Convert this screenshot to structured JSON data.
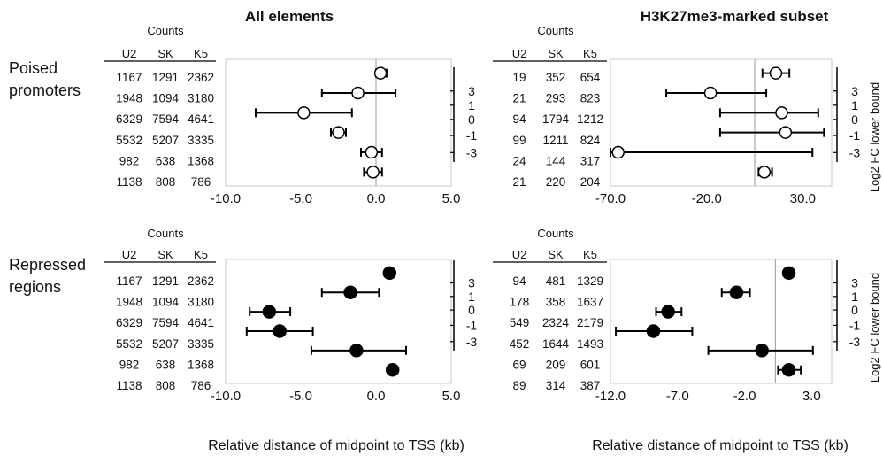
{
  "headers": {
    "left": "All elements",
    "right": "H3K27me3-marked subset"
  },
  "row_labels": {
    "top": [
      "Poised",
      "promoters"
    ],
    "bottom": [
      "Repressed",
      "regions"
    ]
  },
  "counts_label": "Counts",
  "count_columns": [
    "U2",
    "SK",
    "K5"
  ],
  "x_label": "Relative distance of midpoint to TSS (kb)",
  "side_label": "Log2 FC lower bound",
  "side_ticks": [
    "3",
    "1",
    "0",
    "-1",
    "-3"
  ],
  "chart_data": [
    {
      "type": "scatter",
      "id": "poised-all",
      "title": "All elements",
      "row_label": "Poised promoters",
      "marker": "open",
      "xlim": [
        -10,
        5
      ],
      "xticks": [
        "-10.0",
        "-5.0",
        "0.0",
        "5.0"
      ],
      "xtick_values": [
        -10,
        -5,
        0,
        5
      ],
      "refline": 0,
      "counts": [
        [
          "1167",
          "1291",
          "2362"
        ],
        [
          "1948",
          "1094",
          "3180"
        ],
        [
          "6329",
          "7594",
          "4641"
        ],
        [
          "5532",
          "5207",
          "3335"
        ],
        [
          "982",
          "638",
          "1368"
        ],
        [
          "1138",
          "808",
          "786"
        ]
      ],
      "points": [
        {
          "x": 0.3,
          "low": 0.0,
          "high": 0.7
        },
        {
          "x": -1.2,
          "low": -3.6,
          "high": 1.3
        },
        {
          "x": -4.8,
          "low": -8.0,
          "high": -1.6
        },
        {
          "x": -2.5,
          "low": -3.0,
          "high": -2.0
        },
        {
          "x": -0.3,
          "low": -1.0,
          "high": 0.4
        },
        {
          "x": -0.2,
          "low": -0.8,
          "high": 0.4
        }
      ]
    },
    {
      "type": "scatter",
      "id": "poised-h3k27",
      "title": "H3K27me3-marked subset",
      "row_label": "Poised promoters",
      "marker": "open",
      "xlim": [
        -70,
        45
      ],
      "xticks": [
        "-70.0",
        "-20.0",
        "30.0"
      ],
      "xtick_values": [
        -70,
        -20,
        30
      ],
      "refline": 5,
      "counts": [
        [
          "19",
          "352",
          "654"
        ],
        [
          "21",
          "293",
          "823"
        ],
        [
          "94",
          "1794",
          "1212"
        ],
        [
          "99",
          "1211",
          "824"
        ],
        [
          "24",
          "144",
          "317"
        ],
        [
          "21",
          "220",
          "204"
        ]
      ],
      "points": [
        {
          "x": 16,
          "low": 9,
          "high": 23
        },
        {
          "x": -18,
          "low": -41,
          "high": 11
        },
        {
          "x": 19,
          "low": -13,
          "high": 38
        },
        {
          "x": 21,
          "low": -13,
          "high": 41
        },
        {
          "x": -66,
          "low": -70,
          "high": 35
        },
        {
          "x": 10,
          "low": 7,
          "high": 14
        }
      ]
    },
    {
      "type": "scatter",
      "id": "repressed-all",
      "title": "All elements",
      "row_label": "Repressed regions",
      "marker": "filled",
      "xlim": [
        -10,
        5
      ],
      "xticks": [
        "-10.0",
        "-5.0",
        "0.0",
        "5.0"
      ],
      "xtick_values": [
        -10,
        -5,
        0,
        5
      ],
      "refline": null,
      "counts": [
        [
          "1167",
          "1291",
          "2362"
        ],
        [
          "1948",
          "1094",
          "3180"
        ],
        [
          "6329",
          "7594",
          "4641"
        ],
        [
          "5532",
          "5207",
          "3335"
        ],
        [
          "982",
          "638",
          "1368"
        ],
        [
          "1138",
          "808",
          "786"
        ]
      ],
      "points": [
        {
          "x": 0.9,
          "low": null,
          "high": null
        },
        {
          "x": -1.7,
          "low": -3.6,
          "high": 0.2
        },
        {
          "x": -7.1,
          "low": -8.4,
          "high": -5.7
        },
        {
          "x": -6.4,
          "low": -8.6,
          "high": -4.2
        },
        {
          "x": -1.3,
          "low": -4.3,
          "high": 2.0
        },
        {
          "x": 1.1,
          "low": null,
          "high": null
        }
      ]
    },
    {
      "type": "scatter",
      "id": "repressed-h3k27",
      "title": "H3K27me3-marked subset",
      "row_label": "Repressed regions",
      "marker": "filled",
      "xlim": [
        -12,
        4.5
      ],
      "xticks": [
        "-12.0",
        "-7.0",
        "-2.0",
        "3.0"
      ],
      "xtick_values": [
        -12,
        -7,
        -2,
        3
      ],
      "refline": 0.3,
      "counts": [
        [
          "94",
          "481",
          "1329"
        ],
        [
          "178",
          "358",
          "1637"
        ],
        [
          "549",
          "2324",
          "2179"
        ],
        [
          "452",
          "1644",
          "1493"
        ],
        [
          "69",
          "209",
          "601"
        ],
        [
          "89",
          "314",
          "387"
        ]
      ],
      "points": [
        {
          "x": 1.3,
          "low": null,
          "high": null
        },
        {
          "x": -2.6,
          "low": -3.7,
          "high": -1.6
        },
        {
          "x": -7.7,
          "low": -8.6,
          "high": -6.7
        },
        {
          "x": -8.8,
          "low": -11.6,
          "high": -5.9
        },
        {
          "x": -0.7,
          "low": -4.7,
          "high": 3.1
        },
        {
          "x": 1.3,
          "low": 0.5,
          "high": 2.2
        }
      ]
    }
  ]
}
